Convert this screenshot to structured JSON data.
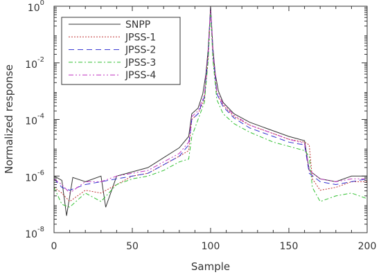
{
  "chart_data": {
    "type": "line",
    "title": "",
    "xlabel": "Sample",
    "ylabel": "Normalized response",
    "xlim": [
      0,
      200
    ],
    "ylim_log10": [
      -8,
      0
    ],
    "log_scale_y": true,
    "grid": false,
    "legend_position": "top-left",
    "x_ticks": [
      {
        "value": 0,
        "label": "0"
      },
      {
        "value": 50,
        "label": "50"
      },
      {
        "value": 100,
        "label": "100"
      },
      {
        "value": 150,
        "label": "150"
      },
      {
        "value": 200,
        "label": "200"
      }
    ],
    "y_ticks": [
      {
        "exp": -8,
        "base": "10",
        "power": "-8"
      },
      {
        "exp": -6,
        "base": "10",
        "power": "-6"
      },
      {
        "exp": -4,
        "base": "10",
        "power": "-4"
      },
      {
        "exp": -2,
        "base": "10",
        "power": "-2"
      },
      {
        "exp": 0,
        "base": "10",
        "power": "0"
      }
    ],
    "series": [
      {
        "name": "SNPP",
        "color": "#333333",
        "dash": "",
        "points": [
          [
            0,
            -6.0
          ],
          [
            5,
            -6.15
          ],
          [
            8,
            -7.4
          ],
          [
            12,
            -6.05
          ],
          [
            20,
            -6.2
          ],
          [
            30,
            -6.0
          ],
          [
            33,
            -7.1
          ],
          [
            40,
            -6.0
          ],
          [
            50,
            -5.85
          ],
          [
            60,
            -5.7
          ],
          [
            70,
            -5.35
          ],
          [
            80,
            -5.0
          ],
          [
            86,
            -4.6
          ],
          [
            88,
            -3.8
          ],
          [
            92,
            -3.6
          ],
          [
            95,
            -3.1
          ],
          [
            97,
            -2.4
          ],
          [
            98.5,
            -1.5
          ],
          [
            100,
            0.0
          ],
          [
            101.5,
            -1.5
          ],
          [
            103,
            -2.4
          ],
          [
            105,
            -3.0
          ],
          [
            108,
            -3.4
          ],
          [
            115,
            -3.8
          ],
          [
            125,
            -4.1
          ],
          [
            140,
            -4.4
          ],
          [
            150,
            -4.6
          ],
          [
            160,
            -4.75
          ],
          [
            163,
            -5.8
          ],
          [
            170,
            -6.1
          ],
          [
            180,
            -6.2
          ],
          [
            190,
            -6.0
          ],
          [
            200,
            -6.0
          ]
        ]
      },
      {
        "name": "JPSS-1",
        "color": "#c03030",
        "dash": "2,2",
        "points": [
          [
            0,
            -6.4
          ],
          [
            5,
            -6.6
          ],
          [
            10,
            -6.9
          ],
          [
            20,
            -6.5
          ],
          [
            30,
            -6.6
          ],
          [
            40,
            -6.3
          ],
          [
            50,
            -6.0
          ],
          [
            60,
            -5.9
          ],
          [
            70,
            -5.6
          ],
          [
            80,
            -5.3
          ],
          [
            86,
            -5.1
          ],
          [
            88,
            -4.0
          ],
          [
            92,
            -3.8
          ],
          [
            96,
            -3.3
          ],
          [
            98.5,
            -1.8
          ],
          [
            100,
            -0.1
          ],
          [
            101.5,
            -1.8
          ],
          [
            104,
            -3.1
          ],
          [
            108,
            -3.5
          ],
          [
            115,
            -3.9
          ],
          [
            125,
            -4.2
          ],
          [
            140,
            -4.5
          ],
          [
            150,
            -4.7
          ],
          [
            160,
            -4.8
          ],
          [
            163,
            -4.9
          ],
          [
            165,
            -6.1
          ],
          [
            170,
            -6.5
          ],
          [
            180,
            -6.4
          ],
          [
            190,
            -6.2
          ],
          [
            200,
            -6.2
          ]
        ]
      },
      {
        "name": "JPSS-2",
        "color": "#3030d0",
        "dash": "8,5",
        "points": [
          [
            0,
            -6.1
          ],
          [
            5,
            -6.4
          ],
          [
            10,
            -6.5
          ],
          [
            20,
            -6.3
          ],
          [
            30,
            -6.2
          ],
          [
            40,
            -6.1
          ],
          [
            50,
            -6.0
          ],
          [
            60,
            -5.9
          ],
          [
            70,
            -5.6
          ],
          [
            80,
            -5.3
          ],
          [
            86,
            -4.9
          ],
          [
            88,
            -4.0
          ],
          [
            92,
            -3.8
          ],
          [
            96,
            -3.2
          ],
          [
            98.5,
            -1.7
          ],
          [
            100,
            -0.05
          ],
          [
            101.5,
            -1.7
          ],
          [
            104,
            -3.1
          ],
          [
            108,
            -3.55
          ],
          [
            115,
            -3.95
          ],
          [
            125,
            -4.3
          ],
          [
            140,
            -4.6
          ],
          [
            150,
            -4.8
          ],
          [
            160,
            -4.9
          ],
          [
            163,
            -5.9
          ],
          [
            170,
            -6.2
          ],
          [
            180,
            -6.3
          ],
          [
            190,
            -6.2
          ],
          [
            200,
            -6.1
          ]
        ]
      },
      {
        "name": "JPSS-3",
        "color": "#30c030",
        "dash": "6,3,2,3",
        "points": [
          [
            0,
            -6.4
          ],
          [
            5,
            -7.0
          ],
          [
            10,
            -7.1
          ],
          [
            20,
            -6.6
          ],
          [
            30,
            -6.9
          ],
          [
            40,
            -6.3
          ],
          [
            50,
            -6.1
          ],
          [
            60,
            -6.0
          ],
          [
            70,
            -5.8
          ],
          [
            80,
            -5.5
          ],
          [
            86,
            -5.4
          ],
          [
            88,
            -4.6
          ],
          [
            92,
            -4.0
          ],
          [
            96,
            -3.4
          ],
          [
            98.5,
            -1.9
          ],
          [
            100,
            -0.15
          ],
          [
            101.5,
            -1.9
          ],
          [
            104,
            -3.3
          ],
          [
            108,
            -3.8
          ],
          [
            115,
            -4.15
          ],
          [
            125,
            -4.45
          ],
          [
            140,
            -4.8
          ],
          [
            150,
            -4.95
          ],
          [
            160,
            -5.1
          ],
          [
            163,
            -5.3
          ],
          [
            165,
            -6.4
          ],
          [
            170,
            -6.9
          ],
          [
            180,
            -6.7
          ],
          [
            190,
            -6.6
          ],
          [
            200,
            -6.8
          ]
        ]
      },
      {
        "name": "JPSS-4",
        "color": "#c030c0",
        "dash": "7,3,2,3,2,3",
        "points": [
          [
            0,
            -6.1
          ],
          [
            5,
            -6.3
          ],
          [
            10,
            -6.6
          ],
          [
            20,
            -6.2
          ],
          [
            30,
            -6.2
          ],
          [
            40,
            -6.0
          ],
          [
            50,
            -5.9
          ],
          [
            60,
            -5.8
          ],
          [
            70,
            -5.5
          ],
          [
            80,
            -5.2
          ],
          [
            86,
            -4.8
          ],
          [
            88,
            -3.9
          ],
          [
            92,
            -3.7
          ],
          [
            96,
            -3.15
          ],
          [
            98.5,
            -1.6
          ],
          [
            100,
            -0.03
          ],
          [
            101.5,
            -1.6
          ],
          [
            104,
            -3.0
          ],
          [
            108,
            -3.45
          ],
          [
            115,
            -3.85
          ],
          [
            125,
            -4.2
          ],
          [
            140,
            -4.5
          ],
          [
            150,
            -4.7
          ],
          [
            160,
            -4.85
          ],
          [
            163,
            -5.8
          ],
          [
            170,
            -6.1
          ],
          [
            180,
            -6.2
          ],
          [
            190,
            -6.1
          ],
          [
            200,
            -6.1
          ]
        ]
      }
    ]
  }
}
